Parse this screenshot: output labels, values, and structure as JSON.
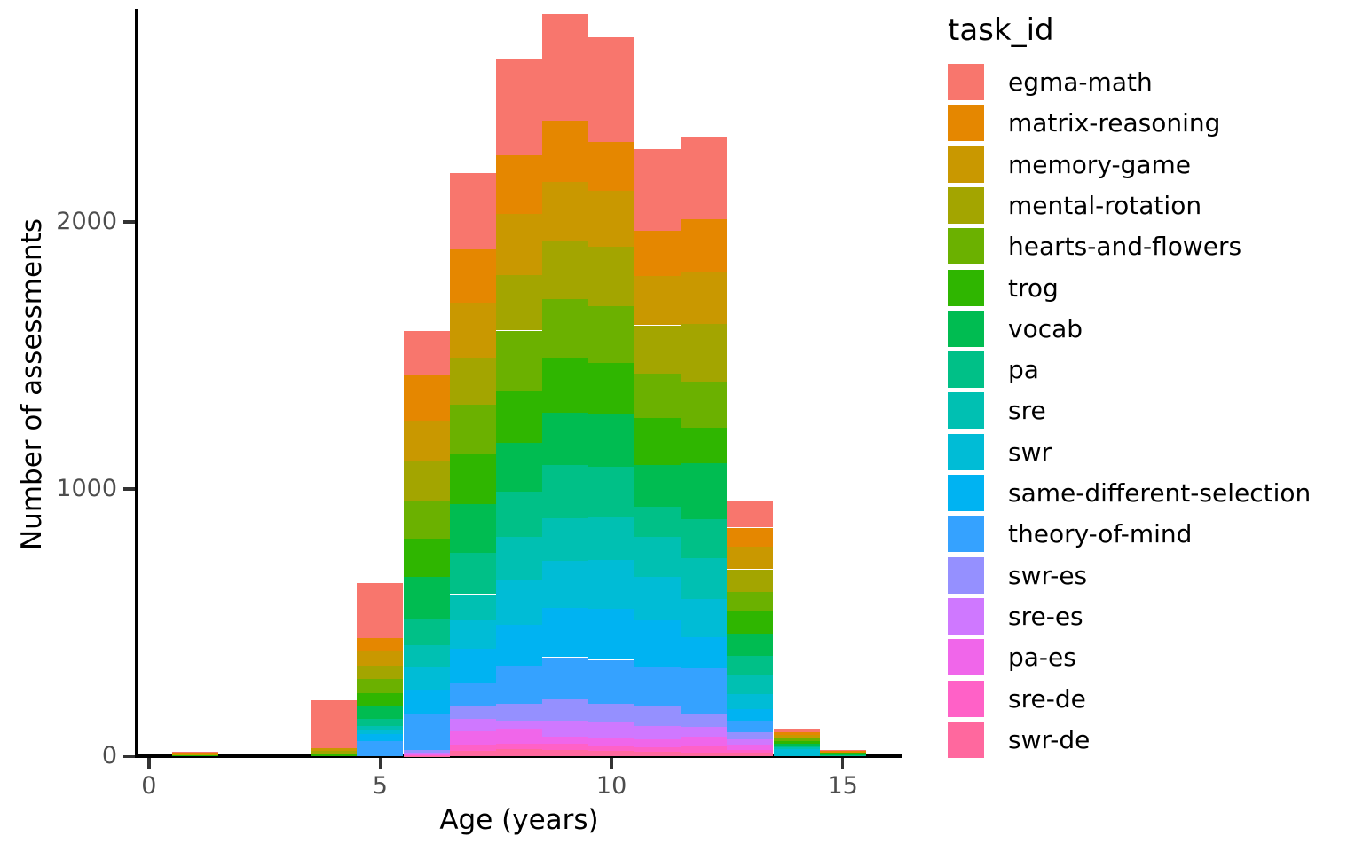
{
  "figure": {
    "background_color": "#ffffff",
    "axis_line_color": "#000000",
    "tick_mark_color": "#333333",
    "tick_label_color": "#4d4d4d"
  },
  "chart_data": {
    "type": "bar",
    "subtype": "stacked-histogram",
    "title": "",
    "xlabel": "Age (years)",
    "ylabel": "Number of assessments",
    "legend_title": "task_id",
    "legend_position": "right",
    "grid": false,
    "bin_width": 1,
    "xlim": [
      -0.25,
      16.3
    ],
    "ylim": [
      0,
      2800
    ],
    "x_ticks": [
      0,
      5,
      10,
      15
    ],
    "y_ticks": [
      0,
      1000,
      2000
    ],
    "categories": [
      1,
      4,
      5,
      6,
      7,
      8,
      9,
      10,
      11,
      12,
      13,
      14,
      15
    ],
    "totals": [
      18,
      210,
      647,
      1593,
      2183,
      2610,
      2777,
      2690,
      2273,
      2320,
      955,
      103,
      26
    ],
    "series": [
      {
        "name": "egma-math",
        "color": "#F8766D",
        "values": [
          6,
          180,
          204,
          166,
          286,
          360,
          400,
          390,
          306,
          310,
          99,
          11,
          5
        ]
      },
      {
        "name": "matrix-reasoning",
        "color": "#E58700",
        "values": [
          5,
          0,
          50,
          170,
          200,
          220,
          227,
          183,
          170,
          200,
          71,
          11,
          5
        ]
      },
      {
        "name": "memory-game",
        "color": "#C99800",
        "values": [
          4,
          10,
          53,
          150,
          204,
          230,
          223,
          210,
          184,
          193,
          85,
          9,
          2
        ]
      },
      {
        "name": "mental-rotation",
        "color": "#A3A500",
        "values": [
          0,
          12,
          50,
          150,
          176,
          207,
          217,
          224,
          180,
          214,
          85,
          6,
          0
        ]
      },
      {
        "name": "hearts-and-flowers",
        "color": "#6BB100",
        "values": [
          0,
          0,
          53,
          144,
          187,
          226,
          217,
          210,
          166,
          173,
          70,
          9,
          4
        ]
      },
      {
        "name": "trog",
        "color": "#2FB600",
        "values": [
          3,
          8,
          50,
          140,
          187,
          194,
          206,
          193,
          177,
          133,
          85,
          9,
          3
        ]
      },
      {
        "name": "vocab",
        "color": "#00BC51",
        "values": [
          0,
          0,
          47,
          160,
          183,
          183,
          197,
          197,
          157,
          210,
          85,
          8,
          2
        ]
      },
      {
        "name": "pa",
        "color": "#00C087",
        "values": [
          0,
          0,
          27,
          96,
          153,
          170,
          200,
          186,
          113,
          147,
          71,
          6,
          2
        ]
      },
      {
        "name": "sre",
        "color": "#00C0B2",
        "values": [
          0,
          0,
          16,
          80,
          97,
          160,
          158,
          163,
          147,
          150,
          71,
          5,
          0
        ]
      },
      {
        "name": "swr",
        "color": "#00BCD6",
        "values": [
          0,
          0,
          14,
          87,
          107,
          166,
          177,
          183,
          165,
          145,
          56,
          29,
          3
        ]
      },
      {
        "name": "same-different-selection",
        "color": "#00B3F2",
        "values": [
          0,
          0,
          26,
          90,
          130,
          155,
          184,
          190,
          171,
          115,
          43,
          0,
          0
        ]
      },
      {
        "name": "theory-of-mind",
        "color": "#35A2FF",
        "values": [
          0,
          0,
          57,
          135,
          83,
          142,
          158,
          163,
          147,
          170,
          42,
          0,
          0
        ]
      },
      {
        "name": "swr-es",
        "color": "#9590FF",
        "values": [
          0,
          0,
          0,
          10,
          50,
          64,
          80,
          68,
          77,
          50,
          27,
          0,
          0
        ]
      },
      {
        "name": "sre-es",
        "color": "#CF78FF",
        "values": [
          0,
          0,
          0,
          7,
          45,
          30,
          60,
          63,
          50,
          35,
          20,
          0,
          0
        ]
      },
      {
        "name": "pa-es",
        "color": "#F066EA",
        "values": [
          0,
          0,
          0,
          4,
          50,
          56,
          26,
          27,
          30,
          35,
          20,
          0,
          0
        ]
      },
      {
        "name": "sre-de",
        "color": "#FF61C7",
        "values": [
          0,
          0,
          0,
          2,
          25,
          20,
          24,
          20,
          16,
          25,
          13,
          0,
          0
        ]
      },
      {
        "name": "swr-de",
        "color": "#FF689E",
        "values": [
          0,
          0,
          0,
          2,
          20,
          27,
          23,
          20,
          17,
          15,
          12,
          0,
          0
        ]
      }
    ]
  }
}
